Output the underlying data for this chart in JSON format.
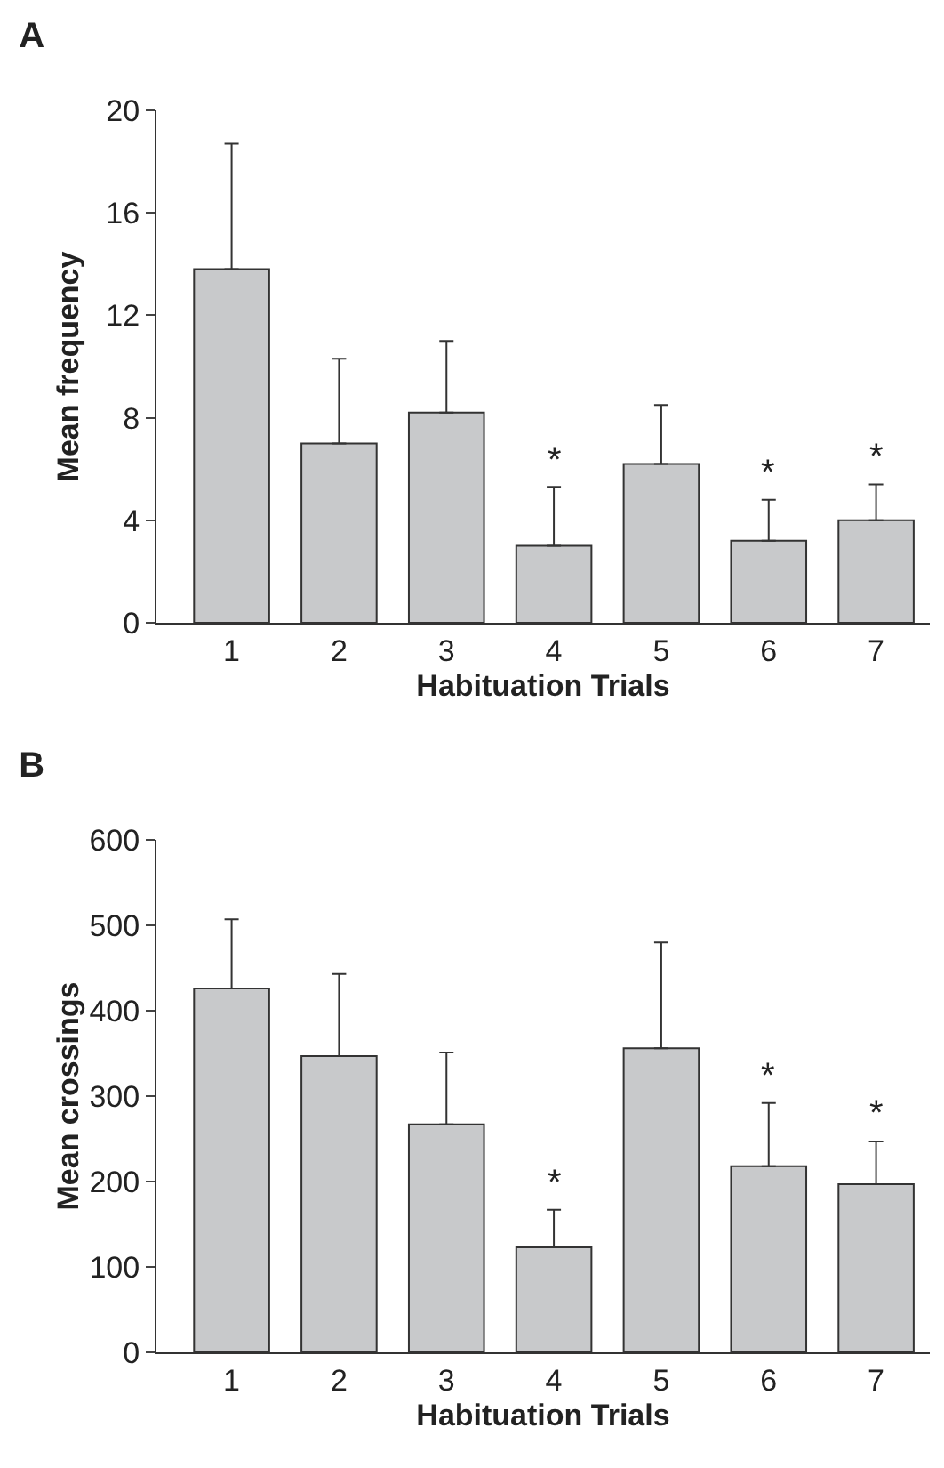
{
  "chart_data": [
    {
      "type": "bar",
      "title": "A",
      "xlabel": "Habituation Trials",
      "ylabel": "Mean frequency",
      "categories": [
        "1",
        "2",
        "3",
        "4",
        "5",
        "6",
        "7"
      ],
      "values": [
        13.8,
        7.0,
        8.2,
        3.0,
        6.2,
        3.2,
        4.0
      ],
      "color": "#c8c9cb",
      "errors": [
        [
          13.8,
          18.7
        ],
        [
          7.0,
          10.3
        ],
        [
          8.2,
          11.0
        ],
        [
          3.0,
          5.3
        ],
        [
          6.2,
          8.5
        ],
        [
          3.2,
          4.8
        ],
        [
          4.0,
          5.4
        ]
      ],
      "ylim": [
        0,
        20
      ],
      "yticks": [
        0,
        4,
        8,
        12,
        16,
        20
      ],
      "annotations": [
        {
          "text": "*",
          "x": "4",
          "y": 5.3
        },
        {
          "text": "*",
          "x": "6",
          "y": 4.8
        },
        {
          "text": "*",
          "x": "7",
          "y": 5.4
        }
      ]
    },
    {
      "type": "bar",
      "title": "B",
      "xlabel": "Habituation Trials",
      "ylabel": "Mean crossings",
      "categories": [
        "1",
        "2",
        "3",
        "4",
        "5",
        "6",
        "7"
      ],
      "values": [
        426,
        347,
        267,
        123,
        356,
        218,
        197
      ],
      "color": "#c8c9cb",
      "errors": [
        [
          426,
          507
        ],
        [
          347,
          443
        ],
        [
          267,
          351
        ],
        [
          123,
          167
        ],
        [
          356,
          480
        ],
        [
          218,
          292
        ],
        [
          197,
          247
        ]
      ],
      "ylim": [
        0,
        600
      ],
      "yticks": [
        0,
        100,
        200,
        300,
        400,
        500,
        600
      ],
      "annotations": [
        {
          "text": "*",
          "x": "4",
          "y": 167
        },
        {
          "text": "*",
          "x": "6",
          "y": 292
        },
        {
          "text": "*",
          "x": "7",
          "y": 247
        }
      ]
    }
  ]
}
